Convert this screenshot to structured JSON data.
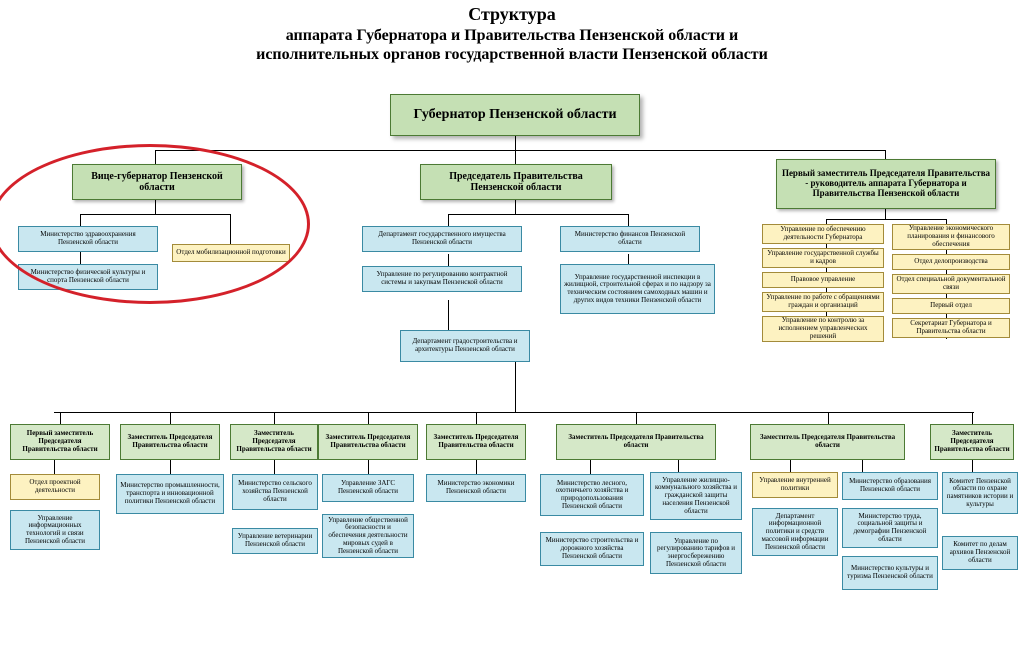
{
  "type": "org-chart",
  "background_color": "#ffffff",
  "colors": {
    "green_fill": "#c5e0b4",
    "green_border": "#4c7a34",
    "blue_fill": "#c9e7f0",
    "blue_border": "#3a8aa3",
    "yellow_fill": "#fdf2c1",
    "yellow_border": "#a38b3a",
    "ellipse": "#d4212a"
  },
  "title": {
    "line1": "Структура",
    "line2": "аппарата Губернатора и Правительства Пензенской области и",
    "line3": "исполнительных органов государственной власти Пензенской области"
  },
  "governor": "Губернатор\nПензенской области",
  "tier2": {
    "vice": "Вице-губернатор\nПензенской области",
    "chair": "Председатель Правительства\nПензенской области",
    "first_deputy": "Первый заместитель Председателя\nПравительства - руководитель аппарата\nГубернатора и Правительства\nПензенской области"
  },
  "vice_children": {
    "health": "Министерство здравоохранения\nПензенской области",
    "sport": "Министерство физической культуры\nи спорта Пензенской области",
    "mob": "Отдел мобилизационной подготовки"
  },
  "chair_children": {
    "property": "Департамент государственного имущества\nПензенской области",
    "finance": "Министерство финансов\nПензенской области",
    "contract": "Управление по регулированию контрактной\nсистемы и закупкам Пензенской области",
    "inspection": "Управление государственной инспекции в\nжилищной, строительной сферах и по надзору\nза техническим состоянием самоходных\nмашин и других видов техники\nПензенской области",
    "arch": "Департамент\nградостроительства и архитектуры\nПензенской области"
  },
  "first_deputy_children": {
    "left": [
      "Управление по обеспечению\nдеятельности Губернатора",
      "Управление государственной службы\nи кадров",
      "Правовое управление",
      "Управление по работе с обращениями\nграждан и организаций",
      "Управление по контролю\nза исполнением управленческих\nрешений"
    ],
    "right": [
      "Управление\nэкономического планирования и\nфинансового обеспечения",
      "Отдел делопроизводства",
      "Отдел специальной документальной\nсвязи",
      "Первый отдел",
      "Секретариат Губернатора и\nПравительства области"
    ]
  },
  "row_heads": [
    "Первый заместитель\nПредседателя\nПравительства области",
    "Заместитель Председателя\nПравительства области",
    "Заместитель Председателя\nПравительства области",
    "Заместитель Председателя\nПравительства области",
    "Заместитель Председателя\nПравительства области",
    "Заместитель Председателя\nПравительства области",
    "Заместитель Председателя\nПравительства области",
    "Заместитель Председателя\nПравительства области"
  ],
  "cols": {
    "c0": [
      {
        "cls": "yellow",
        "t": "Отдел проектной\nдеятельности"
      },
      {
        "cls": "blue",
        "t": "Управление\nинформационных\nтехнологий и связи\nПензенской области"
      }
    ],
    "c1": [
      {
        "cls": "blue",
        "t": "Министерство\nпромышленности, транспорта\nи инновационной политики\nПензенской области"
      }
    ],
    "c2": [
      {
        "cls": "blue",
        "t": "Министерство\nсельского хозяйства\nПензенской области"
      },
      {
        "cls": "blue",
        "t": "Управление ветеринарии\nПензенской области"
      }
    ],
    "c3": [
      {
        "cls": "blue",
        "t": "Управление ЗАГС\nПензенской области"
      },
      {
        "cls": "blue",
        "t": "Управление общественной\nбезопасности и обеспечения\nдеятельности мировых судей\nв Пензенской области"
      }
    ],
    "c4": [
      {
        "cls": "blue",
        "t": "Министерство экономики\nПензенской области"
      }
    ],
    "c5a": [
      {
        "cls": "blue",
        "t": "Министерство\nлесного, охотничьего хозяйства\nи природопользования\nПензенской области"
      },
      {
        "cls": "blue",
        "t": "Министерство строительства и\nдорожного хозяйства\nПензенской области"
      }
    ],
    "c5b": [
      {
        "cls": "blue",
        "t": "Управление жилищно-\nкоммунального\nхозяйства и гражданской\nзащиты населения\nПензенской области"
      },
      {
        "cls": "blue",
        "t": "Управление по\nрегулированию тарифов\nи энергосбережению\nПензенской области"
      }
    ],
    "c6a": [
      {
        "cls": "yellow",
        "t": "Управление внутренней\nполитики"
      },
      {
        "cls": "blue",
        "t": "Департамент\nинформационной политики\nи средств массовой\nинформации\nПензенской области"
      }
    ],
    "c6b": [
      {
        "cls": "blue",
        "t": "Министерство образования\nПензенской области"
      },
      {
        "cls": "blue",
        "t": "Министерство\nтруда, социальной защиты и\nдемографии Пензенской\nобласти"
      },
      {
        "cls": "blue",
        "t": "Министерство\nкультуры и туризма\nПензенской области"
      }
    ],
    "c7": [
      {
        "cls": "blue",
        "t": "Комитет\nПензенской области по\nохране памятников\nистории и культуры"
      },
      {
        "cls": "blue",
        "t": "Комитет\nпо делам архивов\nПензенской области"
      }
    ]
  }
}
